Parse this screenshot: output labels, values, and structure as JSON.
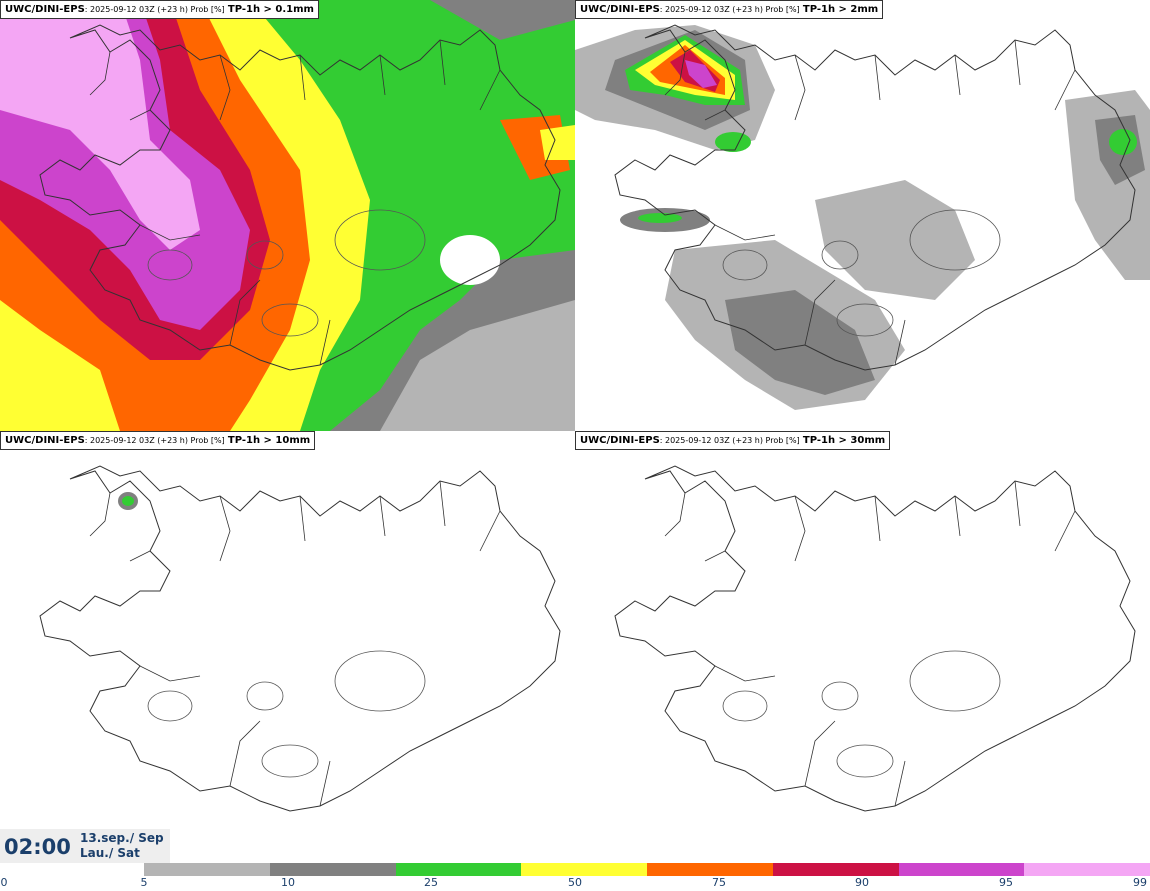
{
  "panels": [
    {
      "model": "UWC/DINI-EPS",
      "meta": ": 2025-09-12 03Z (+23 h) Prob [%]",
      "threshold": "TP-1h > 0.1mm"
    },
    {
      "model": "UWC/DINI-EPS",
      "meta": ": 2025-09-12 03Z (+23 h) Prob [%]",
      "threshold": "TP-1h > 2mm"
    },
    {
      "model": "UWC/DINI-EPS",
      "meta": ": 2025-09-12 03Z (+23 h) Prob [%]",
      "threshold": "TP-1h > 10mm"
    },
    {
      "model": "UWC/DINI-EPS",
      "meta": ": 2025-09-12 03Z (+23 h) Prob [%]",
      "threshold": "TP-1h > 30mm"
    }
  ],
  "valid_time": {
    "time": "02:00",
    "date_line1": "13.sep./ Sep",
    "date_line2": "Lau./ Sat"
  },
  "colorbar": {
    "ticks": [
      "0",
      "5",
      "10",
      "25",
      "50",
      "75",
      "90",
      "95",
      "99"
    ],
    "colors": [
      "#b4b4b4",
      "#808080",
      "#33cc33",
      "#ffff33",
      "#ff6600",
      "#cc1144",
      "#cc44cc",
      "#f4a6f4"
    ]
  }
}
